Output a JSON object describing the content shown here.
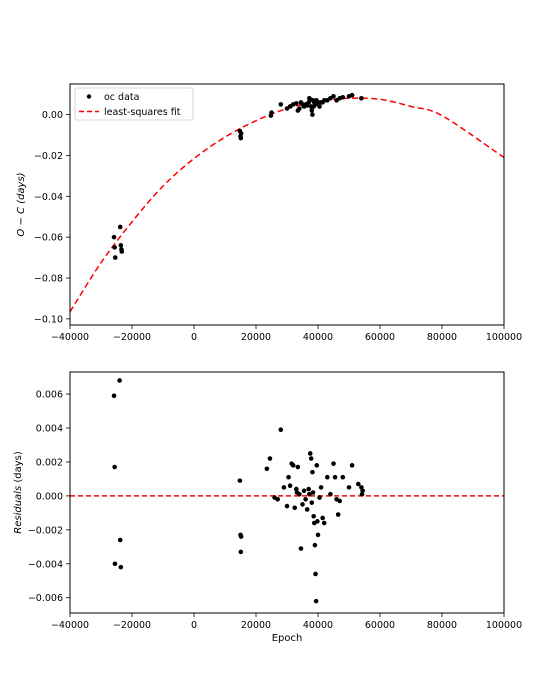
{
  "chart_data": [
    {
      "type": "scatter",
      "title": "",
      "xlabel": "",
      "ylabel": "O − C (days)",
      "xlim": [
        -40000,
        100000
      ],
      "ylim": [
        -0.103,
        0.015
      ],
      "xticks": [
        -40000,
        -20000,
        0,
        20000,
        40000,
        60000,
        80000,
        100000
      ],
      "yticks": [
        -0.1,
        -0.08,
        -0.06,
        -0.04,
        -0.02,
        0.0
      ],
      "ytick_labels": [
        "−0.10",
        "−0.08",
        "−0.06",
        "−0.04",
        "−0.02",
        "0.00"
      ],
      "grid": false,
      "legend": {
        "placement": "top-left",
        "entries": [
          {
            "label": "oc data",
            "marker": "dot",
            "color": "#000000"
          },
          {
            "label": "least-squares fit",
            "marker": "dashed-line",
            "color": "#ff0000"
          }
        ]
      },
      "series": [
        {
          "name": "oc data",
          "kind": "points",
          "color": "#000000",
          "x": [
            -25800,
            -25600,
            -25400,
            -23800,
            -23600,
            -23400,
            -23300,
            14800,
            15000,
            15100,
            15200,
            24800,
            25000,
            28000,
            30000,
            31000,
            32000,
            33000,
            33500,
            34000,
            34500,
            35000,
            35500,
            36000,
            36500,
            37000,
            37200,
            37500,
            37800,
            38000,
            38200,
            38400,
            38600,
            38800,
            39000,
            39200,
            39500,
            40000,
            40500,
            41000,
            41500,
            42000,
            43000,
            44000,
            45000,
            46000,
            47000,
            48000,
            50000,
            51000,
            54000
          ],
          "y": [
            -0.06,
            -0.065,
            -0.07,
            -0.055,
            -0.064,
            -0.066,
            -0.067,
            -0.008,
            -0.0105,
            -0.0115,
            -0.0092,
            -0.0005,
            0.001,
            0.005,
            0.003,
            0.004,
            0.005,
            0.0055,
            0.002,
            0.003,
            0.006,
            0.005,
            0.004,
            0.005,
            0.0045,
            0.006,
            0.008,
            0.0075,
            0.004,
            0.002,
            0.0,
            0.007,
            0.004,
            0.006,
            0.0065,
            0.005,
            0.007,
            0.006,
            0.004,
            0.006,
            0.006,
            0.007,
            0.007,
            0.008,
            0.009,
            0.007,
            0.008,
            0.0085,
            0.009,
            0.0095,
            0.008
          ]
        },
        {
          "name": "least-squares fit",
          "kind": "curve",
          "color": "#ff0000",
          "style": "dashed",
          "x": [
            -40000,
            -30000,
            -20000,
            -10000,
            0,
            10000,
            20000,
            30000,
            40000,
            50000,
            60000,
            70000,
            80000,
            100000
          ],
          "y": [
            -0.0965,
            -0.0725,
            -0.0525,
            -0.035,
            -0.0215,
            -0.011,
            -0.003,
            0.003,
            0.0065,
            0.008,
            0.0075,
            0.004,
            -0.0005,
            -0.021
          ]
        }
      ]
    },
    {
      "type": "scatter",
      "title": "",
      "xlabel": "Epoch",
      "ylabel": "Residuals (days)",
      "xlim": [
        -40000,
        100000
      ],
      "ylim": [
        -0.0069,
        0.0073
      ],
      "xticks": [
        -40000,
        -20000,
        0,
        20000,
        40000,
        60000,
        80000,
        100000
      ],
      "yticks": [
        -0.006,
        -0.004,
        -0.002,
        0.0,
        0.002,
        0.004,
        0.006
      ],
      "ytick_labels": [
        "−0.006",
        "−0.004",
        "−0.002",
        "0.000",
        "0.002",
        "0.004",
        "0.006"
      ],
      "grid": false,
      "reference_line": {
        "y": 0.0,
        "color": "#ff0000",
        "style": "dashed"
      },
      "series": [
        {
          "kind": "points",
          "color": "#000000",
          "x": [
            -25800,
            -25600,
            -25500,
            -24000,
            -23800,
            -23600,
            14800,
            15000,
            15100,
            15200,
            23500,
            24500,
            26000,
            27000,
            28000,
            29000,
            30000,
            30500,
            31000,
            31500,
            32000,
            32500,
            33000,
            33200,
            33500,
            34000,
            34500,
            35000,
            35500,
            36000,
            36500,
            37000,
            37200,
            37500,
            37800,
            38000,
            38200,
            38400,
            38600,
            38800,
            39000,
            39200,
            39400,
            39600,
            39800,
            40000,
            40500,
            41000,
            41500,
            42000,
            43000,
            44000,
            45000,
            45500,
            46000,
            46500,
            47000,
            48000,
            50000,
            51000,
            53000,
            54000,
            54200,
            54400
          ],
          "y": [
            0.0059,
            0.0017,
            -0.004,
            0.0068,
            -0.0026,
            -0.0042,
            0.0009,
            -0.0023,
            -0.0033,
            -0.0024,
            0.0016,
            0.0022,
            -0.0001,
            -0.0002,
            0.0039,
            0.0005,
            -0.0006,
            0.0011,
            0.0006,
            0.0019,
            0.0018,
            -0.0007,
            0.0004,
            0.0002,
            0.0017,
            0.0001,
            -0.0031,
            -0.0005,
            0.0003,
            -0.0002,
            -0.0008,
            0.0004,
            0.0001,
            0.0025,
            0.0022,
            -0.0004,
            0.0014,
            0.0002,
            -0.0012,
            -0.0016,
            -0.0029,
            -0.0046,
            -0.0062,
            0.0018,
            -0.0015,
            -0.0023,
            -0.0001,
            0.0005,
            -0.0013,
            -0.0016,
            0.0011,
            0.0001,
            0.0019,
            0.0011,
            -0.0002,
            -0.0011,
            -0.0003,
            0.0011,
            0.0005,
            0.0018,
            0.0007,
            0.0005,
            0.0001,
            0.0003
          ]
        }
      ]
    }
  ]
}
